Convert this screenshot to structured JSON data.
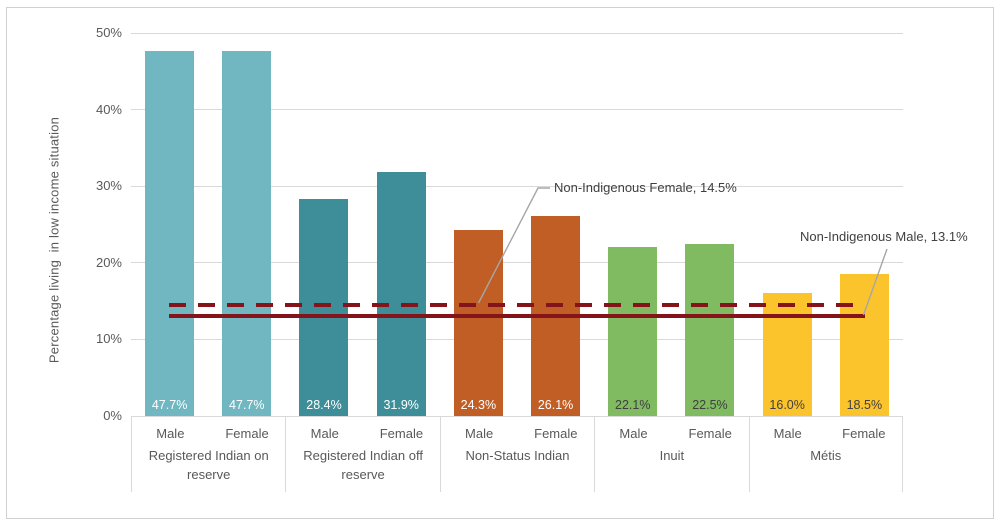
{
  "chart_data": {
    "type": "bar",
    "title": "",
    "ylabel": "Percentage living  in low income situation",
    "ylim": [
      0,
      50
    ],
    "yticks": [
      0,
      10,
      20,
      30,
      40,
      50
    ],
    "ytick_labels": [
      "0%",
      "10%",
      "20%",
      "30%",
      "40%",
      "50%"
    ],
    "grid": "horizontal",
    "legend_position": "none",
    "sex_labels": [
      "Male",
      "Female"
    ],
    "groups": [
      {
        "label": "Registered Indian on reserve",
        "bar_color": "#70B7C1",
        "value_label_color": "#FFFFFF",
        "values": [
          47.7,
          47.7
        ],
        "value_labels": [
          "47.7%",
          "47.7%"
        ]
      },
      {
        "label": "Registered Indian off reserve",
        "bar_color": "#3E8E99",
        "value_label_color": "#FFFFFF",
        "values": [
          28.4,
          31.9
        ],
        "value_labels": [
          "28.4%",
          "31.9%"
        ]
      },
      {
        "label": "Non-Status Indian",
        "bar_color": "#C05E25",
        "value_label_color": "#FFFFFF",
        "values": [
          24.3,
          26.1
        ],
        "value_labels": [
          "24.3%",
          "26.1%"
        ]
      },
      {
        "label": "Inuit",
        "bar_color": "#80BA61",
        "value_label_color": "#404040",
        "values": [
          22.1,
          22.5
        ],
        "value_labels": [
          "22.1%",
          "22.5%"
        ]
      },
      {
        "label": "Métis",
        "bar_color": "#FCC42C",
        "value_label_color": "#404040",
        "values": [
          16.0,
          18.5
        ],
        "value_labels": [
          "16.0%",
          "18.5%"
        ]
      }
    ],
    "reference_lines": [
      {
        "label": "Non-Indigenous Female",
        "value": 14.5,
        "annotation": "Non-Indigenous Female, 14.5%",
        "style": "dashed",
        "color": "#841419"
      },
      {
        "label": "Non-Indigenous Male",
        "value": 13.1,
        "annotation": "Non-Indigenous Male, 13.1%",
        "style": "solid",
        "color": "#841419"
      }
    ]
  },
  "colors": {
    "axis_text": "#595959",
    "annotation_text": "#404040",
    "gridline": "#D9D9D9",
    "figure_border": "#D0D0D0",
    "leader_line": "#A6A6A6",
    "background": "#FFFFFF"
  }
}
